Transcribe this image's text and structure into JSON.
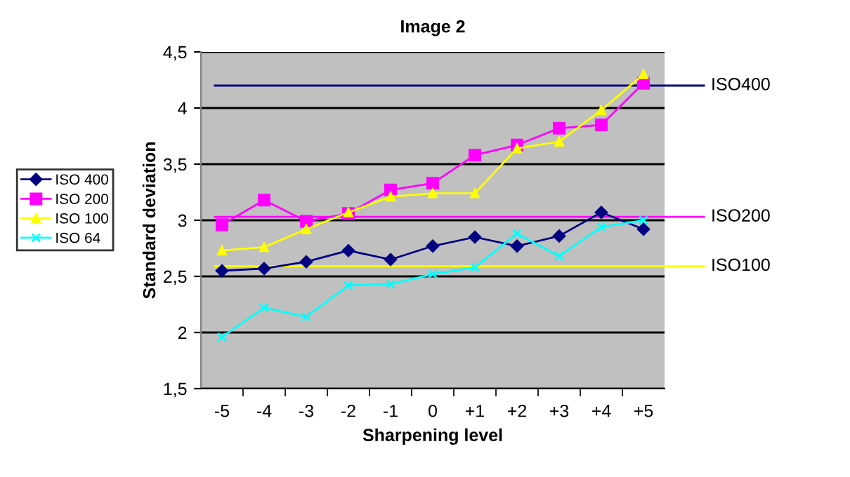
{
  "chart_data": {
    "type": "line",
    "title": "Image 2",
    "xlabel": "Sharpening level",
    "ylabel": "Standard deviation",
    "categories": [
      "-5",
      "-4",
      "-3",
      "-2",
      "-1",
      "0",
      "+1",
      "+2",
      "+3",
      "+4",
      "+5"
    ],
    "series": [
      {
        "name": "ISO 400",
        "color": "#000080",
        "marker": "diamond",
        "values": [
          2.55,
          2.57,
          2.63,
          2.73,
          2.65,
          2.77,
          2.85,
          2.77,
          2.86,
          3.07,
          2.92
        ]
      },
      {
        "name": "ISO 200",
        "color": "#ff00ff",
        "marker": "square",
        "values": [
          2.96,
          3.18,
          2.99,
          3.06,
          3.27,
          3.33,
          3.58,
          3.67,
          3.82,
          3.85,
          4.22
        ]
      },
      {
        "name": "ISO 100",
        "color": "#ffff00",
        "marker": "triangle",
        "values": [
          2.73,
          2.76,
          2.92,
          3.07,
          3.21,
          3.24,
          3.24,
          3.64,
          3.7,
          3.98,
          4.3
        ]
      },
      {
        "name": "ISO 64",
        "color": "#00ffff",
        "marker": "cross",
        "values": [
          1.96,
          2.22,
          2.14,
          2.42,
          2.43,
          2.52,
          2.58,
          2.88,
          2.68,
          2.94,
          3.0
        ]
      }
    ],
    "ylim": [
      1.5,
      4.5
    ],
    "yticks": [
      {
        "value": 1.5,
        "label": "1,5"
      },
      2,
      {
        "value": 2.5,
        "label": "2,5"
      },
      3,
      {
        "value": 3.5,
        "label": "3,5"
      },
      4,
      {
        "value": 4.5,
        "label": "4,5"
      }
    ],
    "ref_lines": [
      {
        "axis": "y",
        "value": 4.2,
        "label": "ISO400",
        "color": "#000080"
      },
      {
        "axis": "y",
        "value": 3.03,
        "label": "ISO200",
        "color": "#ff00ff"
      },
      {
        "axis": "y",
        "value": 2.59,
        "label": "ISO100",
        "color": "#ffff00"
      }
    ],
    "grid": "y",
    "legend": "left"
  }
}
